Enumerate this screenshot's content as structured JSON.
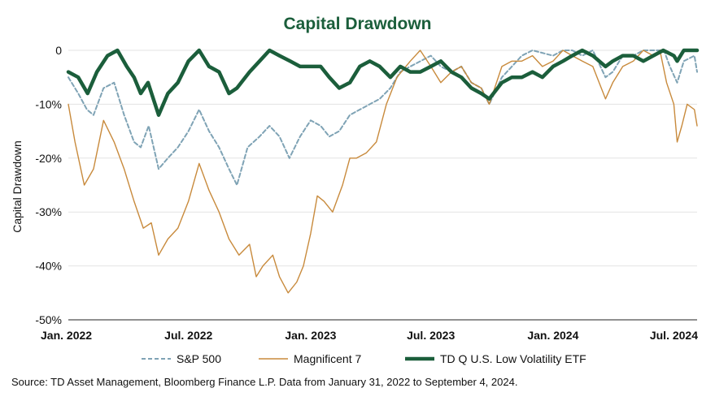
{
  "chart_data": {
    "type": "line",
    "title": "Capital Drawdown",
    "ylabel": "Capital Drawdown",
    "xlabel": "",
    "ylim": [
      -50,
      0
    ],
    "yticks": [
      0,
      -10,
      -20,
      -30,
      -40,
      -50
    ],
    "yticklabels": [
      "0",
      "-10%",
      "-20%",
      "-30%",
      "-40%",
      "-50%"
    ],
    "xlim": [
      "2022-01-31",
      "2024-09-04"
    ],
    "xticks": [
      "2022-01-31",
      "2022-07-31",
      "2023-01-31",
      "2023-07-31",
      "2024-01-31",
      "2024-07-31"
    ],
    "xticklabels": [
      "Jan. 2022",
      "Jul. 2022",
      "Jan. 2023",
      "Jul. 2023",
      "Jan. 2024",
      "Jul. 2024"
    ],
    "grid": "horizontal",
    "legend_position": "bottom",
    "series": [
      {
        "name": "S&P 500",
        "color": "#7fa3b5",
        "style": "dashed",
        "points": [
          [
            "2022-01-31",
            -5
          ],
          [
            "2022-02-15",
            -8
          ],
          [
            "2022-02-28",
            -11
          ],
          [
            "2022-03-10",
            -12
          ],
          [
            "2022-03-25",
            -7
          ],
          [
            "2022-04-10",
            -6
          ],
          [
            "2022-04-25",
            -12
          ],
          [
            "2022-05-10",
            -17
          ],
          [
            "2022-05-20",
            -18
          ],
          [
            "2022-06-01",
            -14
          ],
          [
            "2022-06-16",
            -22
          ],
          [
            "2022-06-30",
            -20
          ],
          [
            "2022-07-15",
            -18
          ],
          [
            "2022-07-31",
            -15
          ],
          [
            "2022-08-16",
            -11
          ],
          [
            "2022-08-31",
            -15
          ],
          [
            "2022-09-15",
            -18
          ],
          [
            "2022-09-30",
            -22
          ],
          [
            "2022-10-12",
            -25
          ],
          [
            "2022-10-28",
            -18
          ],
          [
            "2022-11-15",
            -16
          ],
          [
            "2022-11-30",
            -14
          ],
          [
            "2022-12-15",
            -16
          ],
          [
            "2022-12-30",
            -20
          ],
          [
            "2023-01-15",
            -16
          ],
          [
            "2023-01-31",
            -13
          ],
          [
            "2023-02-15",
            -14
          ],
          [
            "2023-02-28",
            -16
          ],
          [
            "2023-03-15",
            -15
          ],
          [
            "2023-03-31",
            -12
          ],
          [
            "2023-04-15",
            -11
          ],
          [
            "2023-04-30",
            -10
          ],
          [
            "2023-05-15",
            -9
          ],
          [
            "2023-05-31",
            -7
          ],
          [
            "2023-06-15",
            -4
          ],
          [
            "2023-06-30",
            -3
          ],
          [
            "2023-07-31",
            -1
          ],
          [
            "2023-08-15",
            -3
          ],
          [
            "2023-08-31",
            -4
          ],
          [
            "2023-09-15",
            -3
          ],
          [
            "2023-09-30",
            -6
          ],
          [
            "2023-10-15",
            -7
          ],
          [
            "2023-10-27",
            -10
          ],
          [
            "2023-11-15",
            -5
          ],
          [
            "2023-11-30",
            -3
          ],
          [
            "2023-12-15",
            -1
          ],
          [
            "2023-12-31",
            0
          ],
          [
            "2024-01-31",
            -1
          ],
          [
            "2024-02-15",
            0
          ],
          [
            "2024-02-29",
            0
          ],
          [
            "2024-03-15",
            -1
          ],
          [
            "2024-03-31",
            0
          ],
          [
            "2024-04-19",
            -5
          ],
          [
            "2024-04-30",
            -4
          ],
          [
            "2024-05-15",
            -1
          ],
          [
            "2024-05-31",
            -1
          ],
          [
            "2024-06-15",
            0
          ],
          [
            "2024-06-30",
            0
          ],
          [
            "2024-07-16",
            0
          ],
          [
            "2024-07-25",
            -3
          ],
          [
            "2024-08-05",
            -6
          ],
          [
            "2024-08-15",
            -2
          ],
          [
            "2024-08-31",
            -1
          ],
          [
            "2024-09-04",
            -4
          ]
        ]
      },
      {
        "name": "Magnificent 7",
        "color": "#c88a3c",
        "style": "solid",
        "points": [
          [
            "2022-01-31",
            -10
          ],
          [
            "2022-02-10",
            -17
          ],
          [
            "2022-02-24",
            -25
          ],
          [
            "2022-03-10",
            -22
          ],
          [
            "2022-03-25",
            -13
          ],
          [
            "2022-04-10",
            -17
          ],
          [
            "2022-04-25",
            -22
          ],
          [
            "2022-05-10",
            -28
          ],
          [
            "2022-05-24",
            -33
          ],
          [
            "2022-06-05",
            -32
          ],
          [
            "2022-06-16",
            -38
          ],
          [
            "2022-06-30",
            -35
          ],
          [
            "2022-07-15",
            -33
          ],
          [
            "2022-07-31",
            -28
          ],
          [
            "2022-08-16",
            -21
          ],
          [
            "2022-08-31",
            -26
          ],
          [
            "2022-09-15",
            -30
          ],
          [
            "2022-09-30",
            -35
          ],
          [
            "2022-10-15",
            -38
          ],
          [
            "2022-10-31",
            -36
          ],
          [
            "2022-11-10",
            -42
          ],
          [
            "2022-11-20",
            -40
          ],
          [
            "2022-12-05",
            -38
          ],
          [
            "2022-12-15",
            -42
          ],
          [
            "2022-12-28",
            -45
          ],
          [
            "2023-01-10",
            -43
          ],
          [
            "2023-01-20",
            -40
          ],
          [
            "2023-01-31",
            -34
          ],
          [
            "2023-02-10",
            -27
          ],
          [
            "2023-02-20",
            -28
          ],
          [
            "2023-03-05",
            -30
          ],
          [
            "2023-03-20",
            -25
          ],
          [
            "2023-03-31",
            -20
          ],
          [
            "2023-04-10",
            -20
          ],
          [
            "2023-04-25",
            -19
          ],
          [
            "2023-05-10",
            -17
          ],
          [
            "2023-05-25",
            -10
          ],
          [
            "2023-06-10",
            -5
          ],
          [
            "2023-06-30",
            -2
          ],
          [
            "2023-07-15",
            0
          ],
          [
            "2023-07-31",
            -3
          ],
          [
            "2023-08-15",
            -6
          ],
          [
            "2023-08-31",
            -4
          ],
          [
            "2023-09-15",
            -3
          ],
          [
            "2023-09-30",
            -6
          ],
          [
            "2023-10-15",
            -7
          ],
          [
            "2023-10-27",
            -10
          ],
          [
            "2023-11-15",
            -3
          ],
          [
            "2023-11-30",
            -2
          ],
          [
            "2023-12-15",
            -2
          ],
          [
            "2023-12-31",
            -1
          ],
          [
            "2024-01-15",
            -3
          ],
          [
            "2024-01-31",
            -2
          ],
          [
            "2024-02-15",
            0
          ],
          [
            "2024-02-29",
            -1
          ],
          [
            "2024-03-15",
            -2
          ],
          [
            "2024-03-31",
            -3
          ],
          [
            "2024-04-19",
            -9
          ],
          [
            "2024-04-30",
            -6
          ],
          [
            "2024-05-15",
            -3
          ],
          [
            "2024-05-31",
            -2
          ],
          [
            "2024-06-15",
            0
          ],
          [
            "2024-06-30",
            -1
          ],
          [
            "2024-07-10",
            0
          ],
          [
            "2024-07-20",
            -6
          ],
          [
            "2024-07-31",
            -10
          ],
          [
            "2024-08-05",
            -17
          ],
          [
            "2024-08-12",
            -14
          ],
          [
            "2024-08-20",
            -10
          ],
          [
            "2024-08-31",
            -11
          ],
          [
            "2024-09-04",
            -14
          ]
        ]
      },
      {
        "name": "TD Q U.S. Low Volatility ETF",
        "color": "#1b5e3b",
        "style": "solid-thick",
        "points": [
          [
            "2022-01-31",
            -4
          ],
          [
            "2022-02-15",
            -5
          ],
          [
            "2022-03-01",
            -8
          ],
          [
            "2022-03-15",
            -4
          ],
          [
            "2022-03-31",
            -1
          ],
          [
            "2022-04-15",
            0
          ],
          [
            "2022-04-29",
            -3
          ],
          [
            "2022-05-10",
            -5
          ],
          [
            "2022-05-20",
            -8
          ],
          [
            "2022-05-31",
            -6
          ],
          [
            "2022-06-16",
            -12
          ],
          [
            "2022-06-30",
            -8
          ],
          [
            "2022-07-15",
            -6
          ],
          [
            "2022-07-31",
            -2
          ],
          [
            "2022-08-16",
            0
          ],
          [
            "2022-08-31",
            -3
          ],
          [
            "2022-09-15",
            -4
          ],
          [
            "2022-09-30",
            -8
          ],
          [
            "2022-10-12",
            -7
          ],
          [
            "2022-10-31",
            -4
          ],
          [
            "2022-11-15",
            -2
          ],
          [
            "2022-11-30",
            0
          ],
          [
            "2022-12-15",
            -1
          ],
          [
            "2022-12-31",
            -2
          ],
          [
            "2023-01-15",
            -3
          ],
          [
            "2023-01-31",
            -3
          ],
          [
            "2023-02-15",
            -3
          ],
          [
            "2023-02-28",
            -5
          ],
          [
            "2023-03-15",
            -7
          ],
          [
            "2023-03-31",
            -6
          ],
          [
            "2023-04-15",
            -3
          ],
          [
            "2023-04-30",
            -2
          ],
          [
            "2023-05-15",
            -3
          ],
          [
            "2023-05-31",
            -5
          ],
          [
            "2023-06-15",
            -3
          ],
          [
            "2023-06-30",
            -4
          ],
          [
            "2023-07-15",
            -4
          ],
          [
            "2023-07-31",
            -3
          ],
          [
            "2023-08-15",
            -2
          ],
          [
            "2023-08-31",
            -4
          ],
          [
            "2023-09-15",
            -5
          ],
          [
            "2023-09-30",
            -7
          ],
          [
            "2023-10-15",
            -8
          ],
          [
            "2023-10-27",
            -9
          ],
          [
            "2023-11-15",
            -6
          ],
          [
            "2023-11-30",
            -5
          ],
          [
            "2023-12-15",
            -5
          ],
          [
            "2023-12-31",
            -4
          ],
          [
            "2024-01-15",
            -5
          ],
          [
            "2024-01-31",
            -3
          ],
          [
            "2024-02-15",
            -2
          ],
          [
            "2024-02-29",
            -1
          ],
          [
            "2024-03-15",
            0
          ],
          [
            "2024-03-31",
            -1
          ],
          [
            "2024-04-19",
            -3
          ],
          [
            "2024-04-30",
            -2
          ],
          [
            "2024-05-15",
            -1
          ],
          [
            "2024-05-31",
            -1
          ],
          [
            "2024-06-15",
            -2
          ],
          [
            "2024-06-30",
            -1
          ],
          [
            "2024-07-15",
            0
          ],
          [
            "2024-07-31",
            -1
          ],
          [
            "2024-08-05",
            -2
          ],
          [
            "2024-08-15",
            0
          ],
          [
            "2024-08-31",
            0
          ],
          [
            "2024-09-04",
            0
          ]
        ]
      }
    ]
  },
  "source_note": "Source: TD Asset Management, Bloomberg Finance L.P. Data from January 31, 2022 to September 4, 2024."
}
